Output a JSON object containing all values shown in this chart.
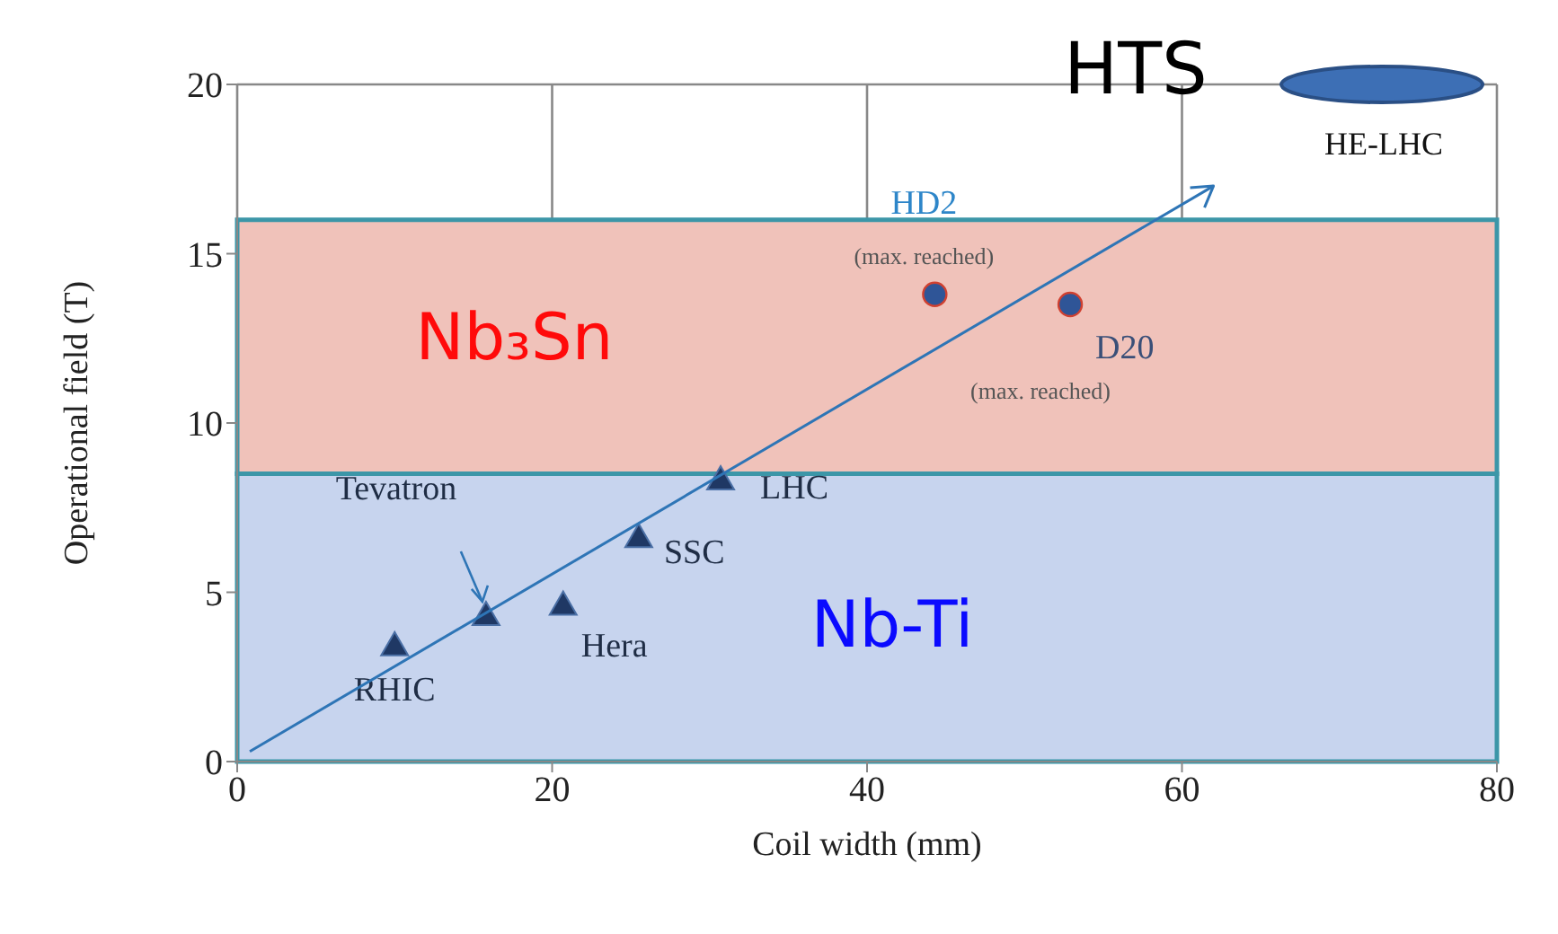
{
  "chart_data": {
    "type": "scatter",
    "xlabel": "Coil width (mm)",
    "ylabel": "Operational field (T)",
    "xlim": [
      0,
      80
    ],
    "xticks": [
      0,
      20,
      40,
      60,
      80
    ],
    "ylim": [
      0,
      20
    ],
    "yticks": [
      0,
      5,
      10,
      15,
      20
    ],
    "grid": true,
    "series": [
      {
        "type": "scatter",
        "color": "#1f3864",
        "x": [
          10,
          15.8,
          20.7,
          25.5,
          30.7
        ],
        "values": [
          3.4,
          4.3,
          4.6,
          6.6,
          8.3
        ],
        "marker": "triangle"
      },
      {
        "type": "scatter",
        "color": "#2f5597",
        "x": [
          44.3,
          52.9
        ],
        "values": [
          13.8,
          13.5
        ],
        "marker": "circle"
      }
    ],
    "bands": [
      {
        "axis": "y",
        "from": 0,
        "to": 8.5,
        "label": "Nb-Ti",
        "color": "#c7d4ee"
      },
      {
        "axis": "y",
        "from": 8.5,
        "to": 16,
        "label": "Nb₃Sn",
        "color": "#f0c2ba"
      }
    ],
    "annotations": [
      {
        "text": "RHIC",
        "x": 10,
        "y": 3.4
      },
      {
        "text": "Tevatron",
        "x": 15.8,
        "y": 4.3
      },
      {
        "text": "Hera",
        "x": 20.7,
        "y": 4.6
      },
      {
        "text": "SSC",
        "x": 25.5,
        "y": 6.6
      },
      {
        "text": "LHC",
        "x": 30.7,
        "y": 8.3
      },
      {
        "text": "HD2",
        "x": 44.3,
        "y": 13.8
      },
      {
        "text": "(max. reached)",
        "x": 44.3,
        "y": 13.8
      },
      {
        "text": "D20",
        "x": 52.9,
        "y": 13.5
      },
      "(max. reached)",
      "HE-LHC",
      "HTS"
    ]
  }
}
